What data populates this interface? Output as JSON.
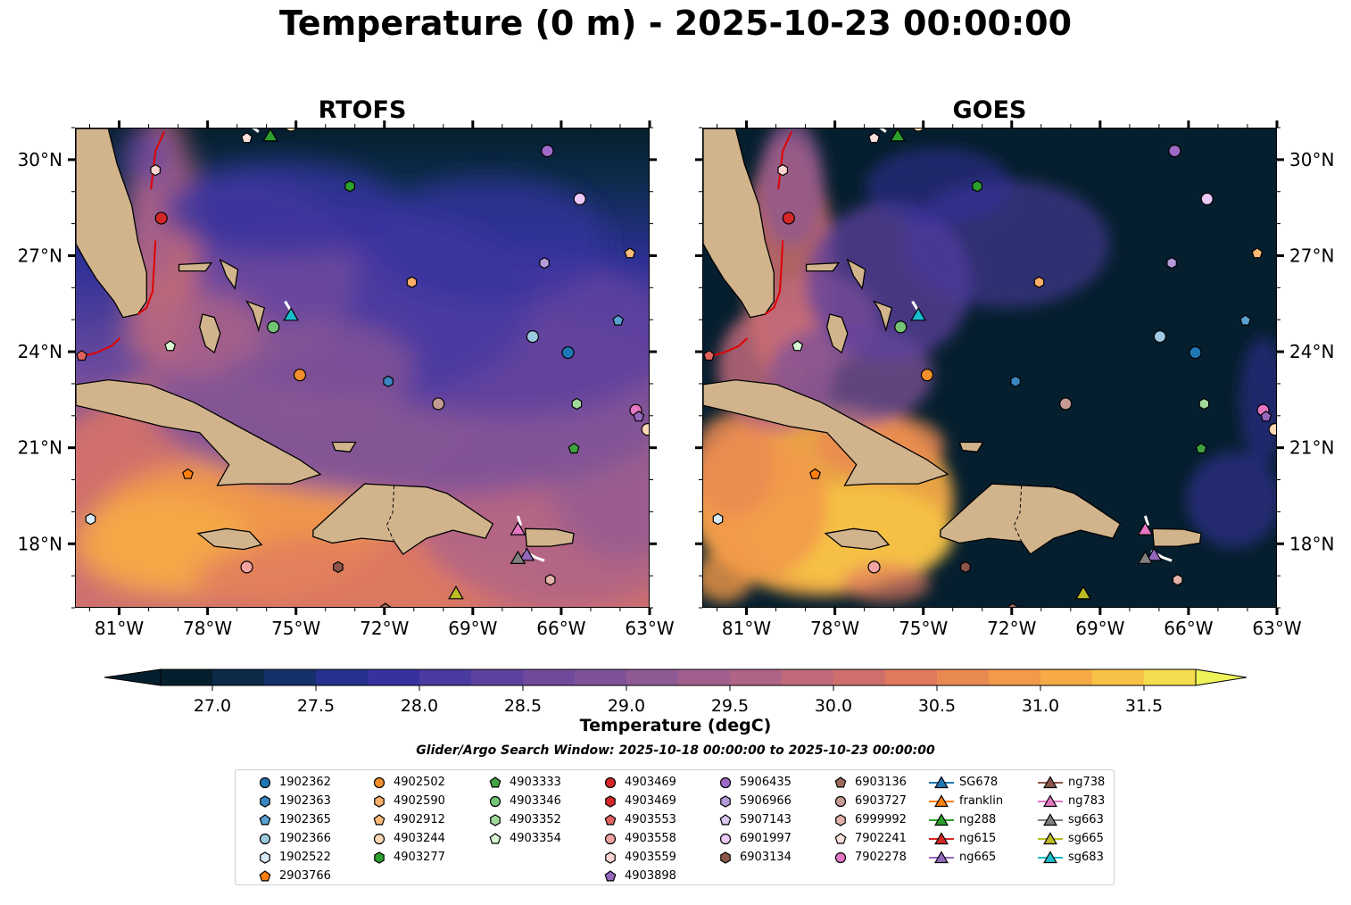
{
  "title": "Temperature (0 m) - 2025-10-23 00:00:00",
  "panels": [
    {
      "name": "RTOFS",
      "style": "model"
    },
    {
      "name": "GOES",
      "style": "satellite"
    }
  ],
  "axes": {
    "lon_min": -82.5,
    "lon_max": -63,
    "lat_min": 16,
    "lat_max": 31,
    "x_ticks": [
      {
        "value": -81,
        "label": "81°W"
      },
      {
        "value": -78,
        "label": "78°W"
      },
      {
        "value": -75,
        "label": "75°W"
      },
      {
        "value": -72,
        "label": "72°W"
      },
      {
        "value": -69,
        "label": "69°W"
      },
      {
        "value": -66,
        "label": "66°W"
      },
      {
        "value": -63,
        "label": "63°W"
      }
    ],
    "y_ticks": [
      {
        "value": 30,
        "label": "30°N"
      },
      {
        "value": 27,
        "label": "27°N"
      },
      {
        "value": 24,
        "label": "24°N"
      },
      {
        "value": 21,
        "label": "21°N"
      },
      {
        "value": 18,
        "label": "18°N"
      }
    ]
  },
  "colorbar": {
    "label": "Temperature (degC)",
    "min": 26.75,
    "max": 31.75,
    "ticks": [
      "27.0",
      "27.5",
      "28.0",
      "28.5",
      "29.0",
      "29.5",
      "30.0",
      "30.5",
      "31.0",
      "31.5"
    ],
    "colors": [
      "#061f2e",
      "#0b2a48",
      "#14306b",
      "#26318f",
      "#35329e",
      "#4b3aa0",
      "#5e419f",
      "#6f4a9c",
      "#7f5298",
      "#8f5a93",
      "#a15f8d",
      "#b06486",
      "#c16a7c",
      "#cf6f6c",
      "#e07a5f",
      "#ea8a53",
      "#f29a49",
      "#f6ab46",
      "#f7c246",
      "#f5dc4e"
    ],
    "extend_low": "#061f2e",
    "extend_high": "#eef35a"
  },
  "search_window": "Glider/Argo Search Window: 2025-10-18 00:00:00 to 2025-10-23 00:00:00",
  "legend": [
    {
      "label": "1902362",
      "marker": "circle",
      "color": "#1f77b4"
    },
    {
      "label": "1902363",
      "marker": "hexagon",
      "color": "#3b86c0"
    },
    {
      "label": "1902365",
      "marker": "pentagon",
      "color": "#5aa0d2"
    },
    {
      "label": "1902366",
      "marker": "circle",
      "color": "#9ecae1"
    },
    {
      "label": "1902522",
      "marker": "hexagon",
      "color": "#d6eaf8"
    },
    {
      "label": "2903766",
      "marker": "pentagon",
      "color": "#ff7f0e"
    },
    {
      "label": "4902502",
      "marker": "circle",
      "color": "#f28e2b"
    },
    {
      "label": "4902590",
      "marker": "hexagon",
      "color": "#fdae6b"
    },
    {
      "label": "4902912",
      "marker": "pentagon",
      "color": "#ffbb78"
    },
    {
      "label": "4903244",
      "marker": "circle",
      "color": "#fdd9b5"
    },
    {
      "label": "4903277",
      "marker": "hexagon",
      "color": "#2ca02c"
    },
    {
      "label": "4903333",
      "marker": "pentagon",
      "color": "#41a341"
    },
    {
      "label": "4903346",
      "marker": "circle",
      "color": "#74c476"
    },
    {
      "label": "4903352",
      "marker": "hexagon",
      "color": "#a1d99b"
    },
    {
      "label": "4903354",
      "marker": "pentagon",
      "color": "#d9f7d3"
    },
    {
      "label": "4903469",
      "marker": "circle",
      "color": "#d62728"
    },
    {
      "label": "4903469",
      "marker": "hexagon",
      "color": "#d62728"
    },
    {
      "label": "4903553",
      "marker": "pentagon",
      "color": "#e0625e"
    },
    {
      "label": "4903558",
      "marker": "circle",
      "color": "#f4a3a3"
    },
    {
      "label": "4903559",
      "marker": "hexagon",
      "color": "#fcd5d2"
    },
    {
      "label": "4903898",
      "marker": "pentagon",
      "color": "#9467bd"
    },
    {
      "label": "5906435",
      "marker": "circle",
      "color": "#9e6ac7"
    },
    {
      "label": "5906966",
      "marker": "hexagon",
      "color": "#b59ad9"
    },
    {
      "label": "5907143",
      "marker": "pentagon",
      "color": "#d9c7f0"
    },
    {
      "label": "6901997",
      "marker": "circle",
      "color": "#ebc9f7"
    },
    {
      "label": "6903134",
      "marker": "hexagon",
      "color": "#8c564b"
    },
    {
      "label": "6903136",
      "marker": "pentagon",
      "color": "#9e6a5e"
    },
    {
      "label": "6903727",
      "marker": "circle",
      "color": "#c49c94"
    },
    {
      "label": "6999992",
      "marker": "hexagon",
      "color": "#e3b3a9"
    },
    {
      "label": "7902241",
      "marker": "pentagon",
      "color": "#fce0dc"
    },
    {
      "label": "7902278",
      "marker": "circle",
      "color": "#e377c2"
    },
    {
      "label": "SG678",
      "marker": "triangle",
      "color": "#1f77b4"
    },
    {
      "label": "franklin",
      "marker": "triangle",
      "color": "#ff7f0e"
    },
    {
      "label": "ng288",
      "marker": "triangle",
      "color": "#2ca02c"
    },
    {
      "label": "ng615",
      "marker": "triangle",
      "color": "#d62728"
    },
    {
      "label": "ng665",
      "marker": "triangle",
      "color": "#9467bd"
    },
    {
      "label": "ng738",
      "marker": "triangle",
      "color": "#8c564b"
    },
    {
      "label": "ng783",
      "marker": "triangle",
      "color": "#e377c2"
    },
    {
      "label": "sg663",
      "marker": "triangle",
      "color": "#7f7f7f"
    },
    {
      "label": "sg665",
      "marker": "triangle",
      "color": "#bcbd22"
    },
    {
      "label": "sg683",
      "marker": "triangle",
      "color": "#17becf"
    }
  ],
  "floats": [
    {
      "id": "7902241",
      "lon": -76.7,
      "lat": 30.7,
      "marker": "pentagon",
      "color": "#fce0dc"
    },
    {
      "id": "4903559",
      "lon": -79.8,
      "lat": 29.7,
      "marker": "hexagon",
      "color": "#fcd5d2"
    },
    {
      "id": "4903469",
      "lon": -79.6,
      "lat": 28.2,
      "marker": "circle",
      "color": "#d62728"
    },
    {
      "id": "4903277",
      "lon": -73.2,
      "lat": 29.2,
      "marker": "hexagon",
      "color": "#2ca02c"
    },
    {
      "id": "5906435",
      "lon": -66.5,
      "lat": 30.3,
      "marker": "circle",
      "color": "#9e6ac7"
    },
    {
      "id": "6901997",
      "lon": -65.4,
      "lat": 28.8,
      "marker": "circle",
      "color": "#ebc9f7"
    },
    {
      "id": "5906966",
      "lon": -66.6,
      "lat": 26.8,
      "marker": "hexagon",
      "color": "#b59ad9"
    },
    {
      "id": "4902912",
      "lon": -63.7,
      "lat": 27.1,
      "marker": "pentagon",
      "color": "#ffbb78"
    },
    {
      "id": "4902590",
      "lon": -71.1,
      "lat": 26.2,
      "marker": "hexagon",
      "color": "#fdae6b"
    },
    {
      "id": "1902365",
      "lon": -64.1,
      "lat": 25.0,
      "marker": "pentagon",
      "color": "#5aa0d2"
    },
    {
      "id": "1902366",
      "lon": -67.0,
      "lat": 24.5,
      "marker": "circle",
      "color": "#9ecae1"
    },
    {
      "id": "1902362",
      "lon": -65.8,
      "lat": 24.0,
      "marker": "circle",
      "color": "#1f77b4"
    },
    {
      "id": "4903346",
      "lon": -75.8,
      "lat": 24.8,
      "marker": "circle",
      "color": "#74c476"
    },
    {
      "id": "4903354",
      "lon": -79.3,
      "lat": 24.2,
      "marker": "pentagon",
      "color": "#d9f7d3"
    },
    {
      "id": "4903553",
      "lon": -82.3,
      "lat": 23.9,
      "marker": "pentagon",
      "color": "#e0625e"
    },
    {
      "id": "4902502",
      "lon": -74.9,
      "lat": 23.3,
      "marker": "circle",
      "color": "#f28e2b"
    },
    {
      "id": "1902363",
      "lon": -71.9,
      "lat": 23.1,
      "marker": "hexagon",
      "color": "#3b86c0"
    },
    {
      "id": "6903727",
      "lon": -70.2,
      "lat": 22.4,
      "marker": "circle",
      "color": "#c49c94"
    },
    {
      "id": "4903352",
      "lon": -65.5,
      "lat": 22.4,
      "marker": "hexagon",
      "color": "#a1d99b"
    },
    {
      "id": "7902278",
      "lon": -63.5,
      "lat": 22.2,
      "marker": "circle",
      "color": "#e377c2"
    },
    {
      "id": "4903898",
      "lon": -63.4,
      "lat": 22.0,
      "marker": "pentagon",
      "color": "#9467bd"
    },
    {
      "id": "4903244",
      "lon": -63.1,
      "lat": 21.6,
      "marker": "circle",
      "color": "#fdd9b5"
    },
    {
      "id": "4903333",
      "lon": -65.6,
      "lat": 21.0,
      "marker": "pentagon",
      "color": "#41a341"
    },
    {
      "id": "2903766",
      "lon": -78.7,
      "lat": 20.2,
      "marker": "pentagon",
      "color": "#ff7f0e"
    },
    {
      "id": "1902522",
      "lon": -82.0,
      "lat": 18.8,
      "marker": "hexagon",
      "color": "#d6eaf8"
    },
    {
      "id": "4903558",
      "lon": -76.7,
      "lat": 17.3,
      "marker": "circle",
      "color": "#f4a3a3"
    },
    {
      "id": "6903134",
      "lon": -73.6,
      "lat": 17.3,
      "marker": "hexagon",
      "color": "#8c564b"
    },
    {
      "id": "6999992",
      "lon": -66.4,
      "lat": 16.9,
      "marker": "hexagon",
      "color": "#e3b3a9"
    },
    {
      "id": "6903136",
      "lon": -72.0,
      "lat": 16.0,
      "marker": "pentagon",
      "color": "#9e6a5e"
    },
    {
      "id": "4903244",
      "lon": -75.2,
      "lat": 31.1,
      "marker": "circle",
      "color": "#fdd9b5"
    }
  ],
  "gliders": [
    {
      "id": "ng288",
      "lon": -75.9,
      "lat": 30.8,
      "color": "#2ca02c"
    },
    {
      "id": "sg683",
      "lon": -75.2,
      "lat": 25.2,
      "color": "#17becf"
    },
    {
      "id": "ng783",
      "lon": -67.5,
      "lat": 18.5,
      "color": "#e377c2"
    },
    {
      "id": "ng665",
      "lon": -67.2,
      "lat": 17.7,
      "color": "#9467bd"
    },
    {
      "id": "sg663",
      "lon": -67.5,
      "lat": 17.6,
      "color": "#7f7f7f"
    },
    {
      "id": "sg665",
      "lon": -69.6,
      "lat": 16.5,
      "color": "#bcbd22"
    }
  ]
}
